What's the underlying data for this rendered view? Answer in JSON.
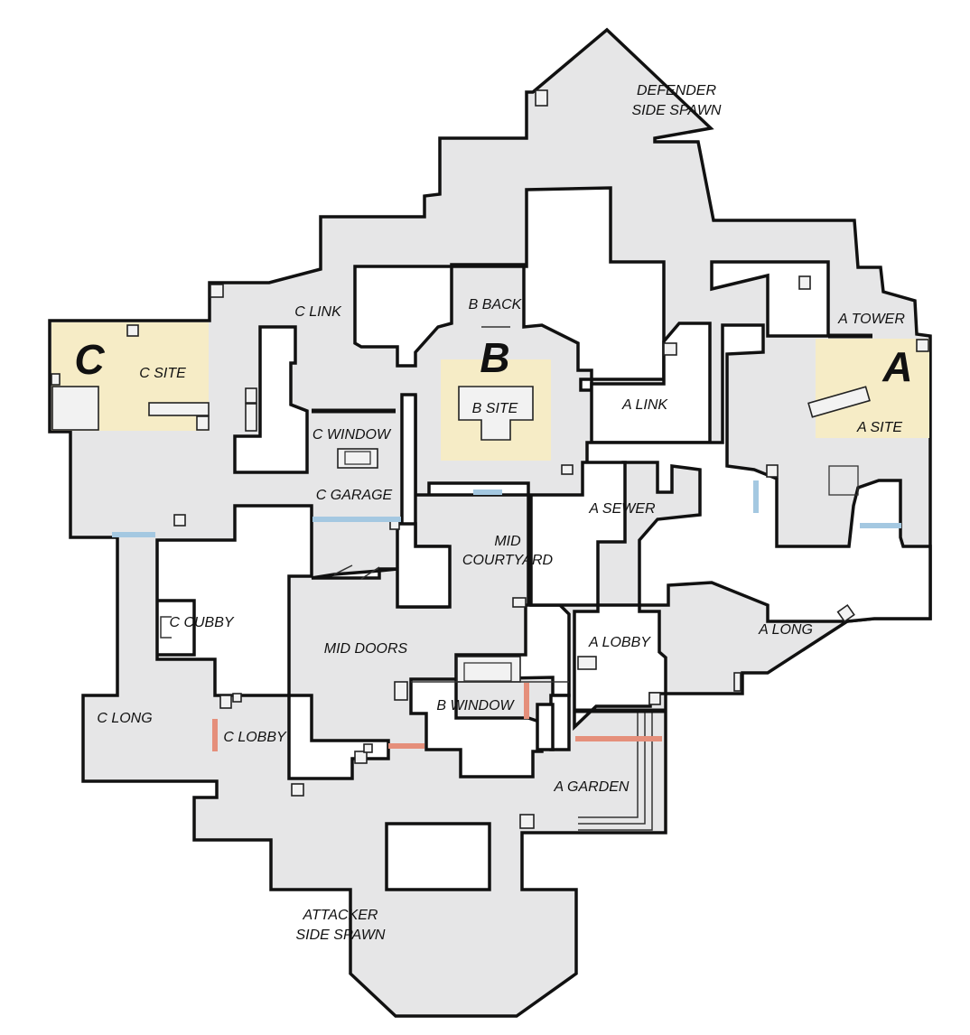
{
  "sites": {
    "a": "A",
    "b": "B",
    "c": "C"
  },
  "labels": {
    "defender_spawn_1": "DEFENDER",
    "defender_spawn_2": "SIDE SPAWN",
    "b_back": "B BACK",
    "c_link": "C LINK",
    "a_tower": "A TOWER",
    "c_site": "C SITE",
    "b_site": "B SITE",
    "a_link": "A LINK",
    "a_site": "A SITE",
    "c_window": "C WINDOW",
    "c_garage": "C GARAGE",
    "a_sewer": "A SEWER",
    "mid_courtyard_1": "MID",
    "mid_courtyard_2": "COURTYARD",
    "c_cubby": "C CUBBY",
    "a_long": "A LONG",
    "mid_doors": "MID DOORS",
    "a_lobby": "A LOBBY",
    "b_window": "B WINDOW",
    "c_long": "C LONG",
    "c_lobby": "C LOBBY",
    "a_garden": "A GARDEN",
    "attacker_spawn_1": "ATTACKER",
    "attacker_spawn_2": "SIDE SPAWN"
  },
  "colors": {
    "floor": "#e6e6e7",
    "walls": "#111111",
    "site_zone": "#f6ecc6",
    "door_blue": "#a4c8e1",
    "door_red": "#e58f7b"
  }
}
